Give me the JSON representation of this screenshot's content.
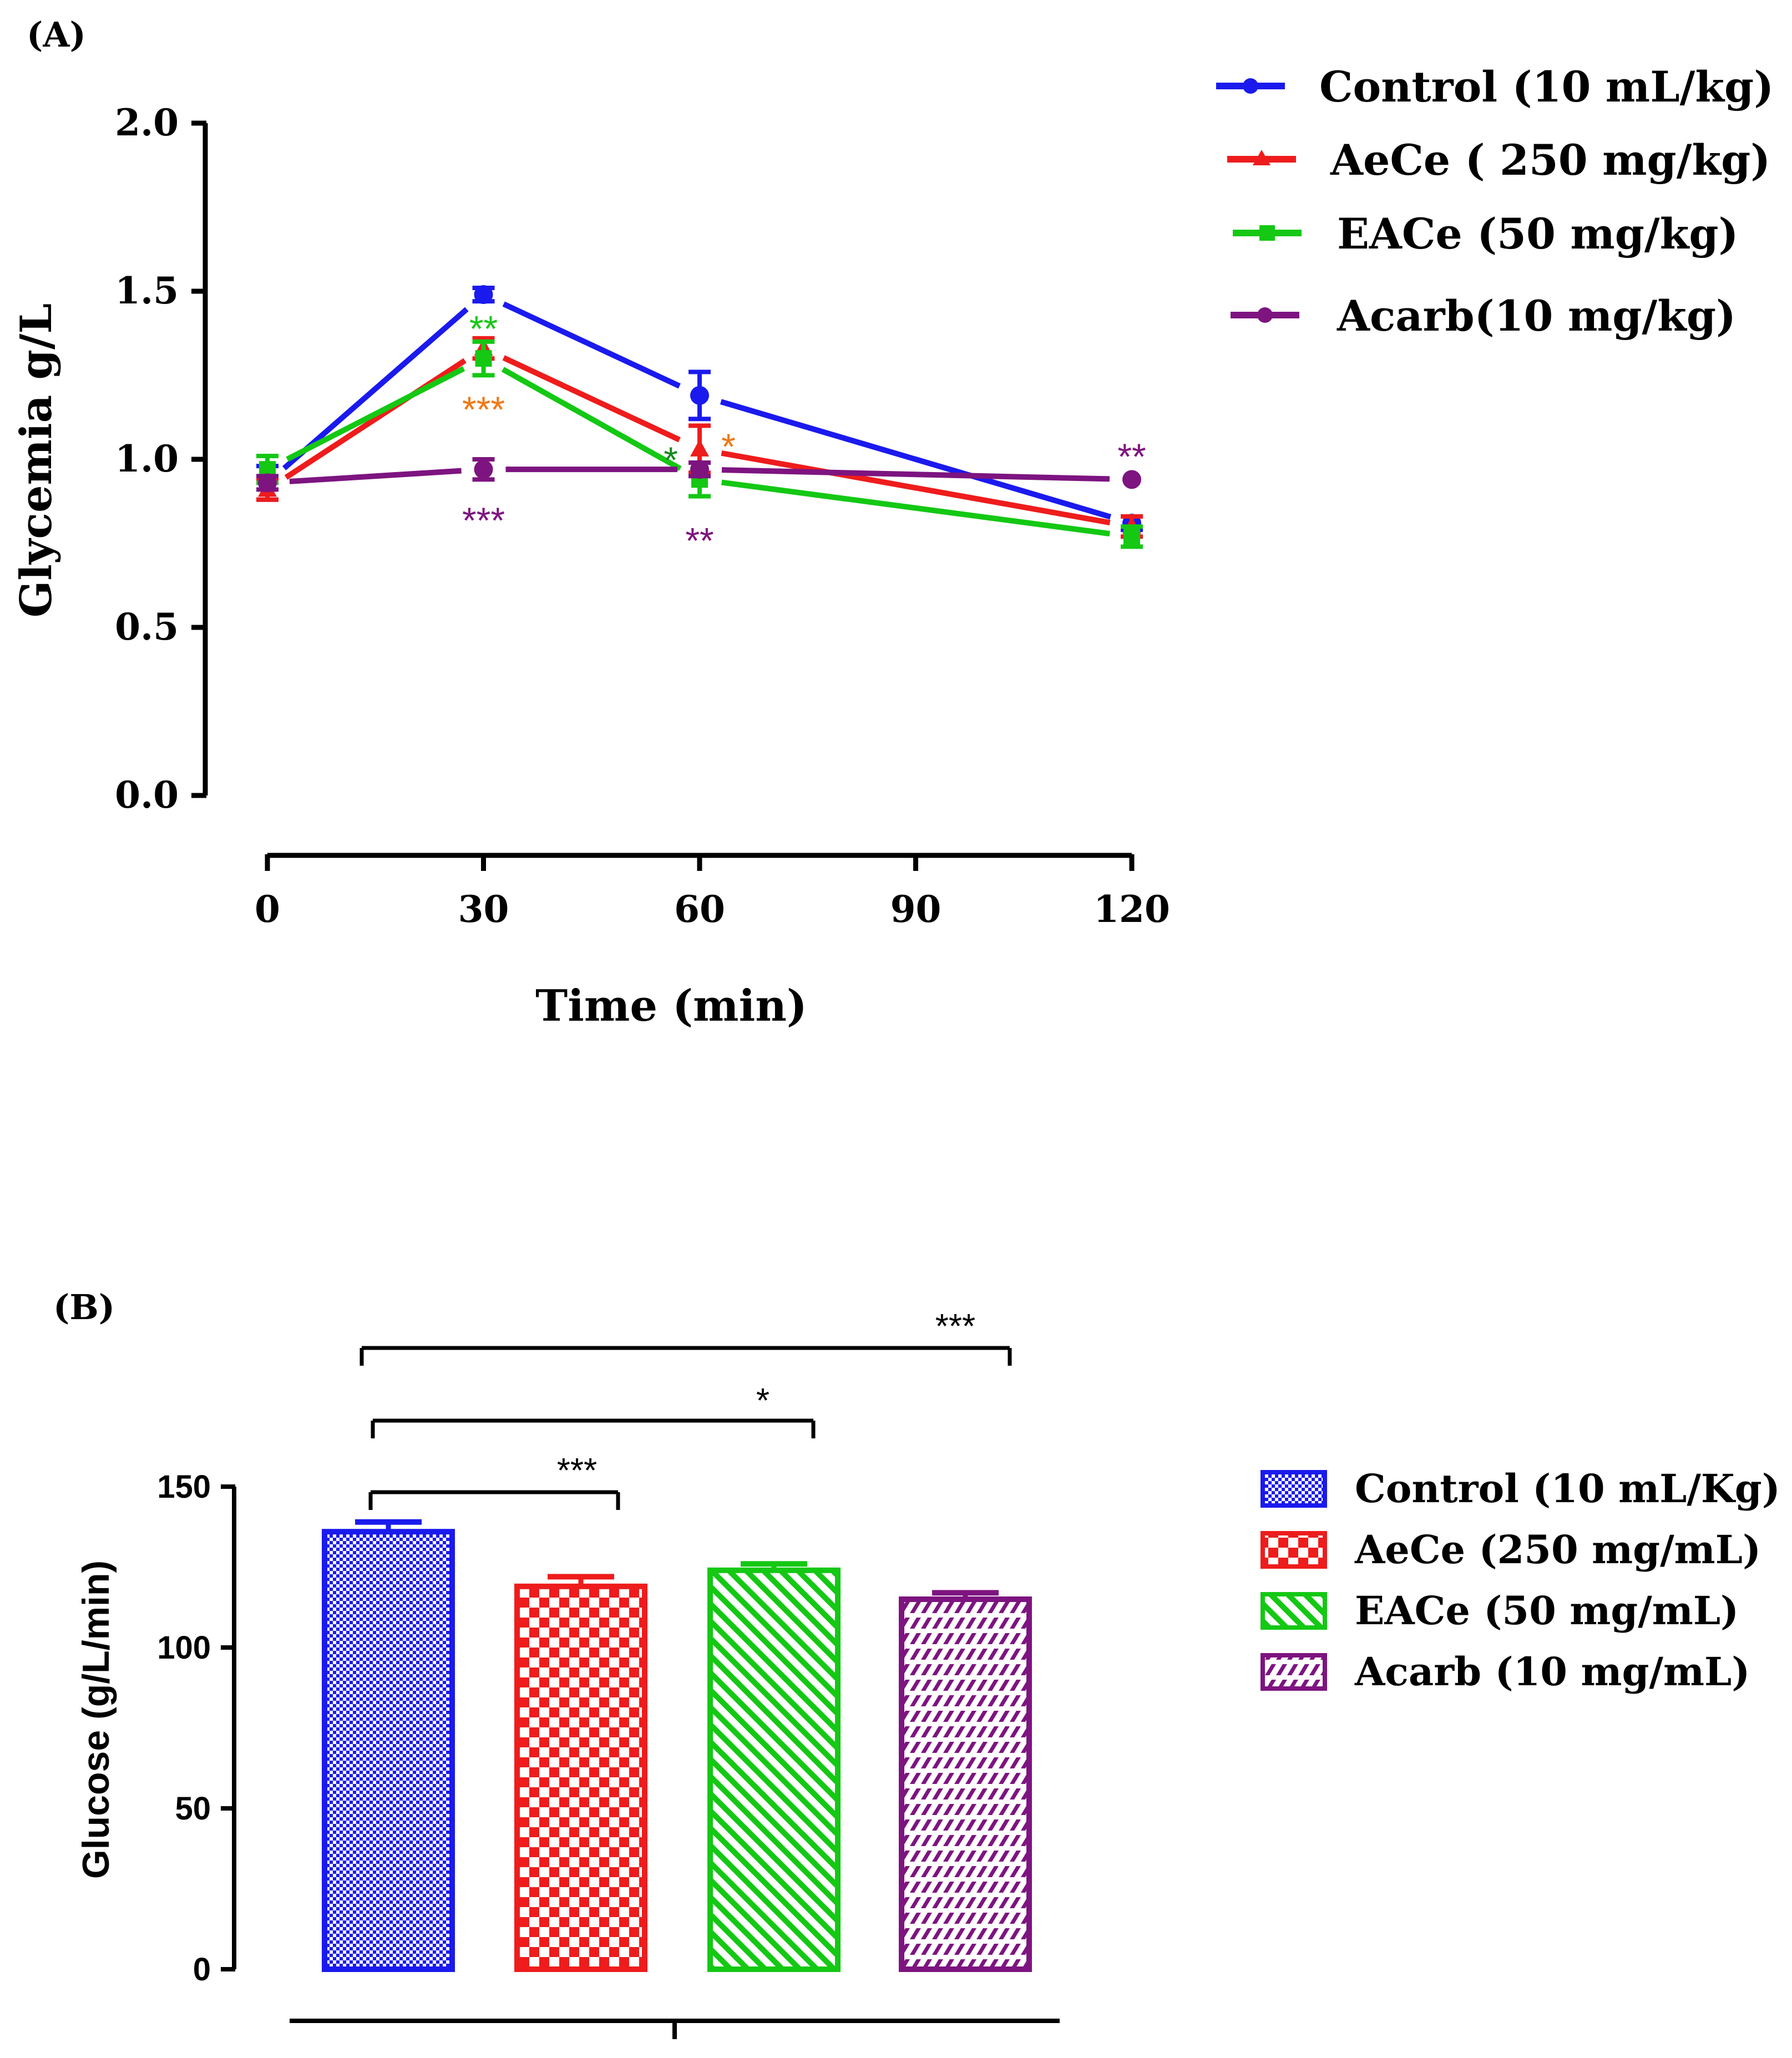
{
  "chart_data": [
    {
      "panel": "(A)",
      "type": "line",
      "xlabel": "Time (min)",
      "ylabel": "Glycemia g/L",
      "x": [
        0,
        30,
        60,
        120
      ],
      "xticks": [
        "0",
        "30",
        "60",
        "90",
        "120"
      ],
      "ylim": [
        0,
        2
      ],
      "yticks": [
        "0.0",
        "0.5",
        "1.0",
        "1.5",
        "2.0"
      ],
      "grid": false,
      "legend_position": "right",
      "series": [
        {
          "name": "Control (10 mL/kg)",
          "color": "#1a1aee",
          "marker": "circle",
          "values": [
            0.93,
            1.49,
            1.19,
            0.81
          ],
          "errors": [
            0.05,
            0.02,
            0.07,
            0.02
          ]
        },
        {
          "name": "AeCe ( 250 mg/kg)",
          "color": "#ee1c1c",
          "marker": "triangle",
          "values": [
            0.91,
            1.33,
            1.03,
            0.8
          ],
          "errors": [
            0.03,
            0.03,
            0.07,
            0.03
          ]
        },
        {
          "name": "EACe (50 mg/kg)",
          "color": "#14c814",
          "marker": "square",
          "values": [
            0.97,
            1.3,
            0.94,
            0.77
          ],
          "errors": [
            0.04,
            0.05,
            0.05,
            0.03
          ]
        },
        {
          "name": "Acarb(10 mg/kg)",
          "color": "#7d1480",
          "marker": "circle",
          "values": [
            0.93,
            0.97,
            0.97,
            0.94
          ],
          "errors": [
            0.02,
            0.03,
            0.02,
            0.0
          ]
        }
      ],
      "annotations": [
        {
          "text": "**",
          "x": 30,
          "y": 1.39,
          "color": "#14c814"
        },
        {
          "text": "***",
          "x": 30,
          "y": 1.15,
          "color": "#f07814"
        },
        {
          "text": "***",
          "x": 30,
          "y": 0.82,
          "color": "#7d1480"
        },
        {
          "text": "*",
          "x": 56,
          "y": 1.0,
          "color": "#14881e"
        },
        {
          "text": "*",
          "x": 64,
          "y": 1.04,
          "color": "#f07814"
        },
        {
          "text": "**",
          "x": 60,
          "y": 0.76,
          "color": "#7d1480"
        },
        {
          "text": "**",
          "x": 120,
          "y": 1.01,
          "color": "#7d1480"
        }
      ]
    },
    {
      "panel": "(B)",
      "type": "bar",
      "xlabel": "",
      "ylabel": "Glucose (g/L/min)",
      "categories": [
        "Control (10 mL/Kg)",
        "AeCe (250 mg/mL)",
        "EACe (50 mg/mL)",
        "Acarb (10 mg/mL)"
      ],
      "values": [
        136,
        119,
        124,
        115
      ],
      "errors": [
        3,
        3,
        2,
        2
      ],
      "colors": [
        "#1a1aee",
        "#ee1c1c",
        "#14c814",
        "#7d1480"
      ],
      "patterns": [
        "fine-check",
        "checker",
        "diagonal",
        "zigzag"
      ],
      "ylim": [
        0,
        150
      ],
      "yticks": [
        "0",
        "50",
        "100",
        "150"
      ],
      "grid": false,
      "legend_position": "right",
      "comparisons": [
        {
          "from": 0,
          "to": 1,
          "label": "***"
        },
        {
          "from": 0,
          "to": 2,
          "label": "*"
        },
        {
          "from": 0,
          "to": 3,
          "label": "***"
        }
      ]
    }
  ]
}
